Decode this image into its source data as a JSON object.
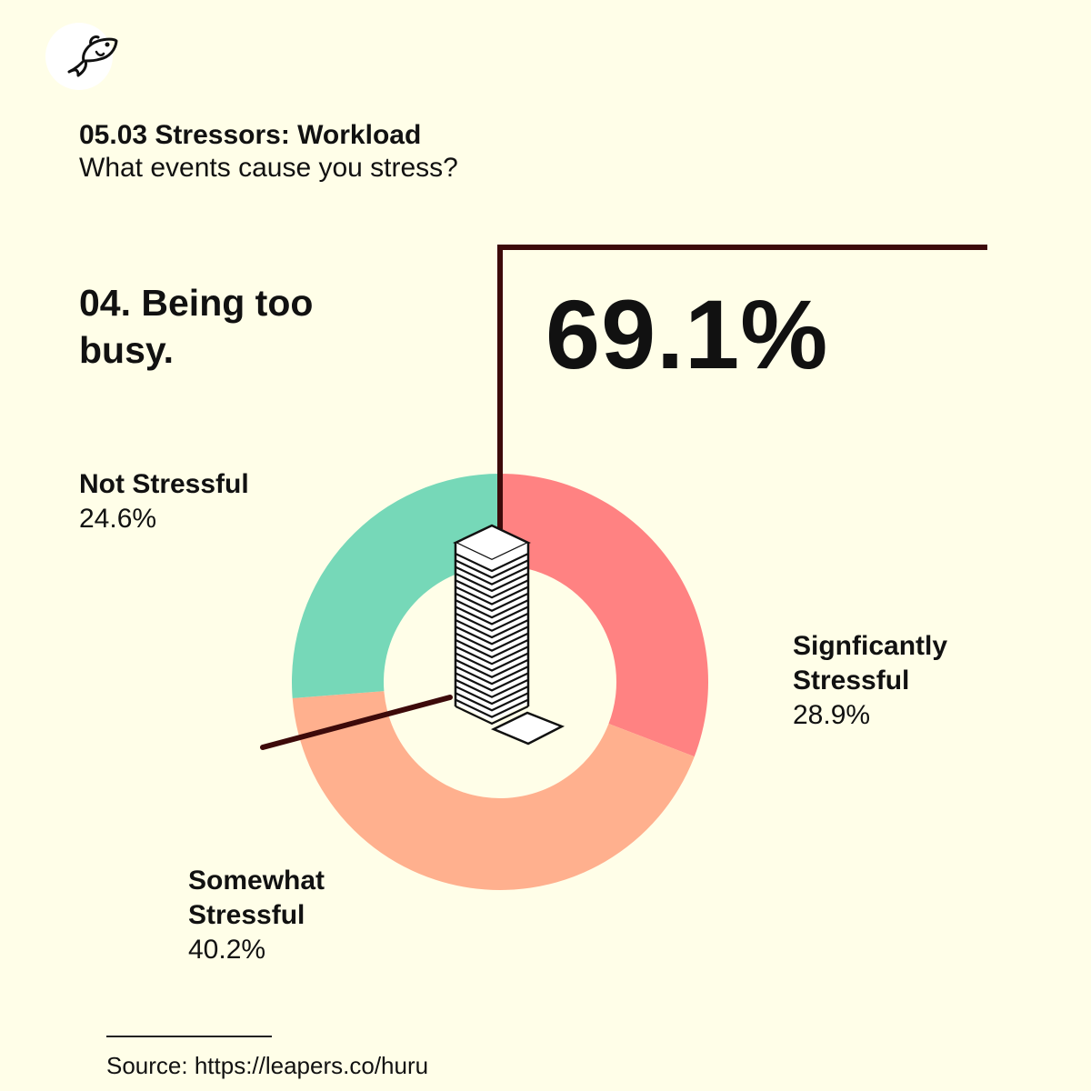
{
  "header": {
    "title": "05.03 Stressors: Workload",
    "subtitle": "What events cause you stress?"
  },
  "question": "04. Being too busy.",
  "highlight": "69.1%",
  "logo": {
    "icon": "fish-icon"
  },
  "colors": {
    "background": "#FFFEE8",
    "significantly": "#FF8282",
    "somewhat": "#FFB08E",
    "not": "#76D8B8",
    "callout_line": "#3D0A0A"
  },
  "chart_data": {
    "type": "pie",
    "style": "donut",
    "categories": [
      "Signficantly Stressful",
      "Somewhat Stressful",
      "Not Stressful"
    ],
    "values": [
      28.9,
      40.2,
      24.6
    ],
    "value_labels": [
      "28.9%",
      "40.2%",
      "24.6%"
    ],
    "colors": [
      "#FF8282",
      "#FFB08E",
      "#76D8B8"
    ]
  },
  "source": "Source: https://leapers.co/huru"
}
